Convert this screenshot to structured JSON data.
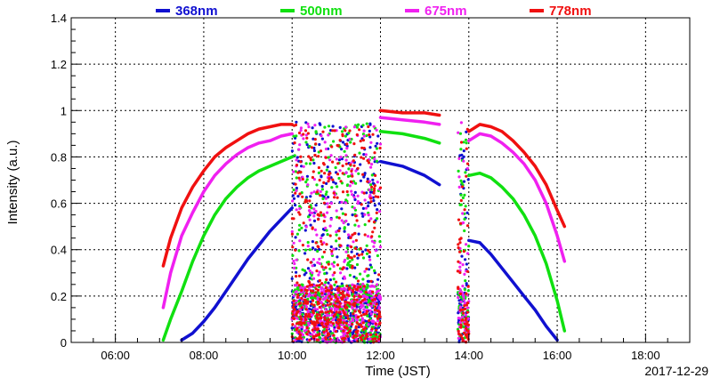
{
  "chart_data": {
    "type": "scatter",
    "title": "",
    "xlabel": "Time (JST)",
    "ylabel": "Intensity (a.u.)",
    "date_label": "2017-12-29",
    "xlim": [
      "05:00",
      "19:00"
    ],
    "ylim": [
      0,
      1.4
    ],
    "x_tick_labels": [
      "06:00",
      "08:00",
      "10:00",
      "12:00",
      "14:00",
      "16:00",
      "18:00"
    ],
    "y_tick_labels": [
      "0",
      "0.2",
      "0.4",
      "0.6",
      "0.8",
      "1",
      "1.2",
      "1.4"
    ],
    "grid": true,
    "legend_position": "top",
    "series": [
      {
        "name": "368nm",
        "color": "#1010d0",
        "points": [
          [
            "07:30",
            0.01
          ],
          [
            "07:45",
            0.04
          ],
          [
            "08:00",
            0.09
          ],
          [
            "08:15",
            0.15
          ],
          [
            "08:30",
            0.22
          ],
          [
            "08:45",
            0.29
          ],
          [
            "09:00",
            0.36
          ],
          [
            "09:15",
            0.42
          ],
          [
            "09:30",
            0.48
          ],
          [
            "09:45",
            0.53
          ],
          [
            "10:00",
            0.58
          ],
          [
            "12:00",
            0.78
          ],
          [
            "12:30",
            0.76
          ],
          [
            "13:00",
            0.72
          ],
          [
            "13:20",
            0.68
          ],
          [
            "14:00",
            0.44
          ],
          [
            "14:15",
            0.43
          ],
          [
            "14:30",
            0.38
          ],
          [
            "14:45",
            0.32
          ],
          [
            "15:00",
            0.26
          ],
          [
            "15:15",
            0.2
          ],
          [
            "15:30",
            0.14
          ],
          [
            "15:45",
            0.07
          ],
          [
            "16:00",
            0.01
          ]
        ]
      },
      {
        "name": "500nm",
        "color": "#10e010",
        "points": [
          [
            "07:05",
            0.01
          ],
          [
            "07:15",
            0.1
          ],
          [
            "07:30",
            0.22
          ],
          [
            "07:45",
            0.35
          ],
          [
            "08:00",
            0.46
          ],
          [
            "08:15",
            0.55
          ],
          [
            "08:30",
            0.62
          ],
          [
            "08:45",
            0.67
          ],
          [
            "09:00",
            0.71
          ],
          [
            "09:15",
            0.74
          ],
          [
            "09:30",
            0.76
          ],
          [
            "09:45",
            0.78
          ],
          [
            "10:00",
            0.8
          ],
          [
            "12:00",
            0.91
          ],
          [
            "12:30",
            0.9
          ],
          [
            "13:00",
            0.88
          ],
          [
            "13:20",
            0.86
          ],
          [
            "14:00",
            0.72
          ],
          [
            "14:15",
            0.73
          ],
          [
            "14:30",
            0.71
          ],
          [
            "14:45",
            0.67
          ],
          [
            "15:00",
            0.62
          ],
          [
            "15:15",
            0.55
          ],
          [
            "15:30",
            0.46
          ],
          [
            "15:45",
            0.34
          ],
          [
            "16:00",
            0.18
          ],
          [
            "16:10",
            0.05
          ]
        ]
      },
      {
        "name": "675nm",
        "color": "#f020f0",
        "points": [
          [
            "07:05",
            0.15
          ],
          [
            "07:15",
            0.3
          ],
          [
            "07:30",
            0.46
          ],
          [
            "07:45",
            0.56
          ],
          [
            "08:00",
            0.65
          ],
          [
            "08:15",
            0.72
          ],
          [
            "08:30",
            0.77
          ],
          [
            "08:45",
            0.81
          ],
          [
            "09:00",
            0.84
          ],
          [
            "09:15",
            0.86
          ],
          [
            "09:30",
            0.87
          ],
          [
            "09:45",
            0.89
          ],
          [
            "10:00",
            0.9
          ],
          [
            "12:00",
            0.97
          ],
          [
            "12:30",
            0.96
          ],
          [
            "13:00",
            0.95
          ],
          [
            "13:20",
            0.94
          ],
          [
            "14:00",
            0.87
          ],
          [
            "14:15",
            0.9
          ],
          [
            "14:30",
            0.89
          ],
          [
            "14:45",
            0.86
          ],
          [
            "15:00",
            0.82
          ],
          [
            "15:15",
            0.77
          ],
          [
            "15:30",
            0.7
          ],
          [
            "15:45",
            0.6
          ],
          [
            "16:00",
            0.46
          ],
          [
            "16:10",
            0.35
          ]
        ]
      },
      {
        "name": "778nm",
        "color": "#f01010",
        "points": [
          [
            "07:05",
            0.33
          ],
          [
            "07:15",
            0.45
          ],
          [
            "07:30",
            0.58
          ],
          [
            "07:45",
            0.67
          ],
          [
            "08:00",
            0.74
          ],
          [
            "08:15",
            0.8
          ],
          [
            "08:30",
            0.84
          ],
          [
            "08:45",
            0.87
          ],
          [
            "09:00",
            0.9
          ],
          [
            "09:15",
            0.92
          ],
          [
            "09:30",
            0.93
          ],
          [
            "09:45",
            0.94
          ],
          [
            "10:00",
            0.94
          ],
          [
            "12:00",
            1.0
          ],
          [
            "12:30",
            0.99
          ],
          [
            "13:00",
            0.99
          ],
          [
            "13:20",
            0.98
          ],
          [
            "14:00",
            0.91
          ],
          [
            "14:15",
            0.94
          ],
          [
            "14:30",
            0.93
          ],
          [
            "14:45",
            0.91
          ],
          [
            "15:00",
            0.87
          ],
          [
            "15:15",
            0.82
          ],
          [
            "15:30",
            0.76
          ],
          [
            "15:45",
            0.68
          ],
          [
            "16:00",
            0.57
          ],
          [
            "16:10",
            0.5
          ]
        ]
      }
    ],
    "scatter_intervals": [
      [
        "10:00",
        "12:00"
      ],
      [
        "13:45",
        "14:00"
      ]
    ]
  }
}
